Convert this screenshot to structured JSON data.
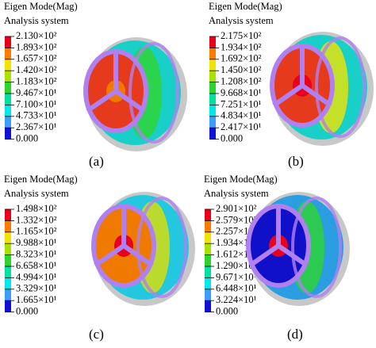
{
  "panels": [
    {
      "title": "Eigen Mode(Mag)",
      "subtitle": "Analysis system",
      "label": "(a)",
      "scale": [
        "2.130×10²",
        "1.893×10²",
        "1.657×10²",
        "1.420×10²",
        "1.183×10²",
        "9.467×10¹",
        "7.100×10¹",
        "4.733×10¹",
        "2.367×10¹",
        "0.000"
      ]
    },
    {
      "title": "Eigen Mode(Mag)",
      "subtitle": "Analysis system",
      "label": "(b)",
      "scale": [
        "2.175×10²",
        "1.934×10²",
        "1.692×10²",
        "1.450×10²",
        "1.208×10²",
        "9.668×10¹",
        "7.251×10¹",
        "4.834×10¹",
        "2.417×10¹",
        "0.000"
      ]
    },
    {
      "title": "Eigen Mode(Mag)",
      "subtitle": "Analysis system",
      "label": "(c)",
      "scale": [
        "1.498×10²",
        "1.332×10²",
        "1.165×10²",
        "9.988×10¹",
        "8.323×10¹",
        "6.658×10¹",
        "4.994×10¹",
        "3.329×10¹",
        "1.665×10¹",
        "0.000"
      ]
    },
    {
      "title": "Eigen Mode(Mag)",
      "subtitle": "Analysis system",
      "label": "(d)",
      "scale": [
        "2.901×10²",
        "2.579×10²",
        "2.257×10²",
        "1.934×10²",
        "1.612×10²",
        "1.290×10²",
        "9.671×10¹",
        "6.448×10¹",
        "3.224×10¹",
        "0.000"
      ]
    }
  ]
}
